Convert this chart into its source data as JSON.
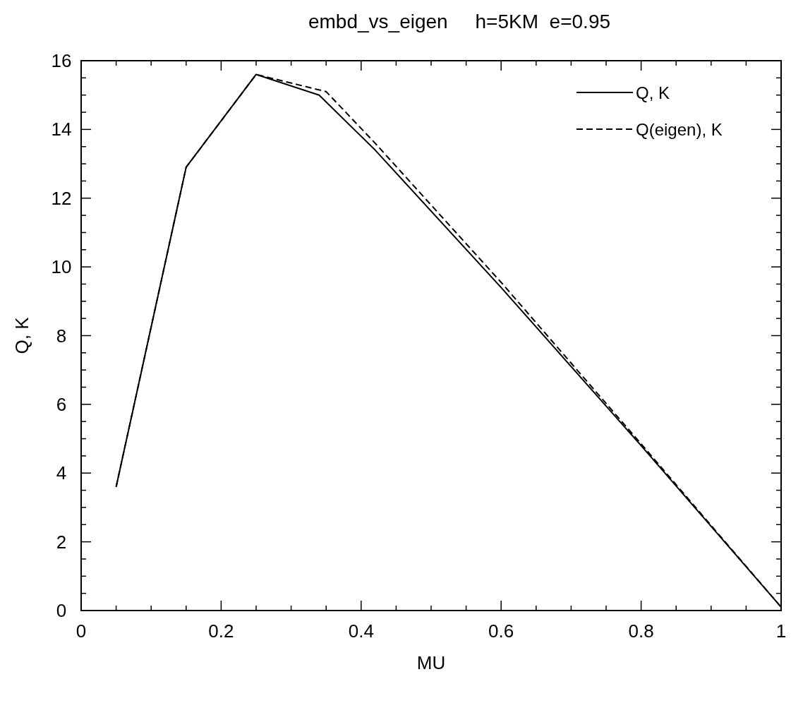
{
  "chart_data": {
    "type": "line",
    "title": "embd_vs_eigen     h=5KM  e=0.95",
    "xlabel": "MU",
    "ylabel": "Q, K",
    "xlim": [
      0,
      1
    ],
    "ylim": [
      0,
      16
    ],
    "xticks": [
      0,
      {
        "value": 0.05,
        "label": null
      },
      {
        "value": 0.1,
        "label": null
      },
      {
        "value": 0.15,
        "label": null
      },
      {
        "value": 0.2,
        "label": "0.2"
      },
      {
        "value": 0.25,
        "label": null
      },
      {
        "value": 0.3,
        "label": null
      },
      {
        "value": 0.35,
        "label": null
      },
      {
        "value": 0.4,
        "label": "0.4"
      },
      {
        "value": 0.45,
        "label": null
      },
      {
        "value": 0.5,
        "label": null
      },
      {
        "value": 0.55,
        "label": null
      },
      {
        "value": 0.6,
        "label": "0.6"
      },
      {
        "value": 0.65,
        "label": null
      },
      {
        "value": 0.7,
        "label": null
      },
      {
        "value": 0.75,
        "label": null
      },
      {
        "value": 0.8,
        "label": "0.8"
      },
      {
        "value": 0.85,
        "label": null
      },
      {
        "value": 0.9,
        "label": null
      },
      {
        "value": 0.95,
        "label": null
      },
      1
    ],
    "yticks": [
      0,
      {
        "value": 0.5,
        "label": null
      },
      {
        "value": 1,
        "label": null
      },
      {
        "value": 1.5,
        "label": null
      },
      2,
      {
        "value": 2.5,
        "label": null
      },
      {
        "value": 3,
        "label": null
      },
      {
        "value": 3.5,
        "label": null
      },
      4,
      {
        "value": 4.5,
        "label": null
      },
      {
        "value": 5,
        "label": null
      },
      {
        "value": 5.5,
        "label": null
      },
      6,
      {
        "value": 6.5,
        "label": null
      },
      {
        "value": 7,
        "label": null
      },
      {
        "value": 7.5,
        "label": null
      },
      8,
      {
        "value": 8.5,
        "label": null
      },
      {
        "value": 9,
        "label": null
      },
      {
        "value": 9.5,
        "label": null
      },
      10,
      {
        "value": 10.5,
        "label": null
      },
      {
        "value": 11,
        "label": null
      },
      {
        "value": 11.5,
        "label": null
      },
      12,
      {
        "value": 12.5,
        "label": null
      },
      {
        "value": 13,
        "label": null
      },
      {
        "value": 13.5,
        "label": null
      },
      14,
      {
        "value": 14.5,
        "label": null
      },
      {
        "value": 15,
        "label": null
      },
      {
        "value": 15.5,
        "label": null
      },
      16
    ],
    "grid": false,
    "legend": "top right",
    "marker": "none",
    "series": [
      {
        "name": "Q, K",
        "color": "#000000",
        "line_style": "solid",
        "x": [
          0.05,
          0.15,
          0.25,
          0.34,
          0.42,
          0.6,
          0.8,
          1.0
        ],
        "values": [
          3.6,
          12.9,
          15.6,
          15.0,
          13.4,
          9.4,
          4.8,
          0.1
        ]
      },
      {
        "name": "Q(eigen), K",
        "color": "#000000",
        "line_style": "dashed",
        "x": [
          0.05,
          0.15,
          0.25,
          0.35,
          0.42,
          0.6,
          0.8,
          1.0
        ],
        "values": [
          3.6,
          12.9,
          15.6,
          15.1,
          13.6,
          9.55,
          4.85,
          0.1
        ]
      }
    ]
  }
}
